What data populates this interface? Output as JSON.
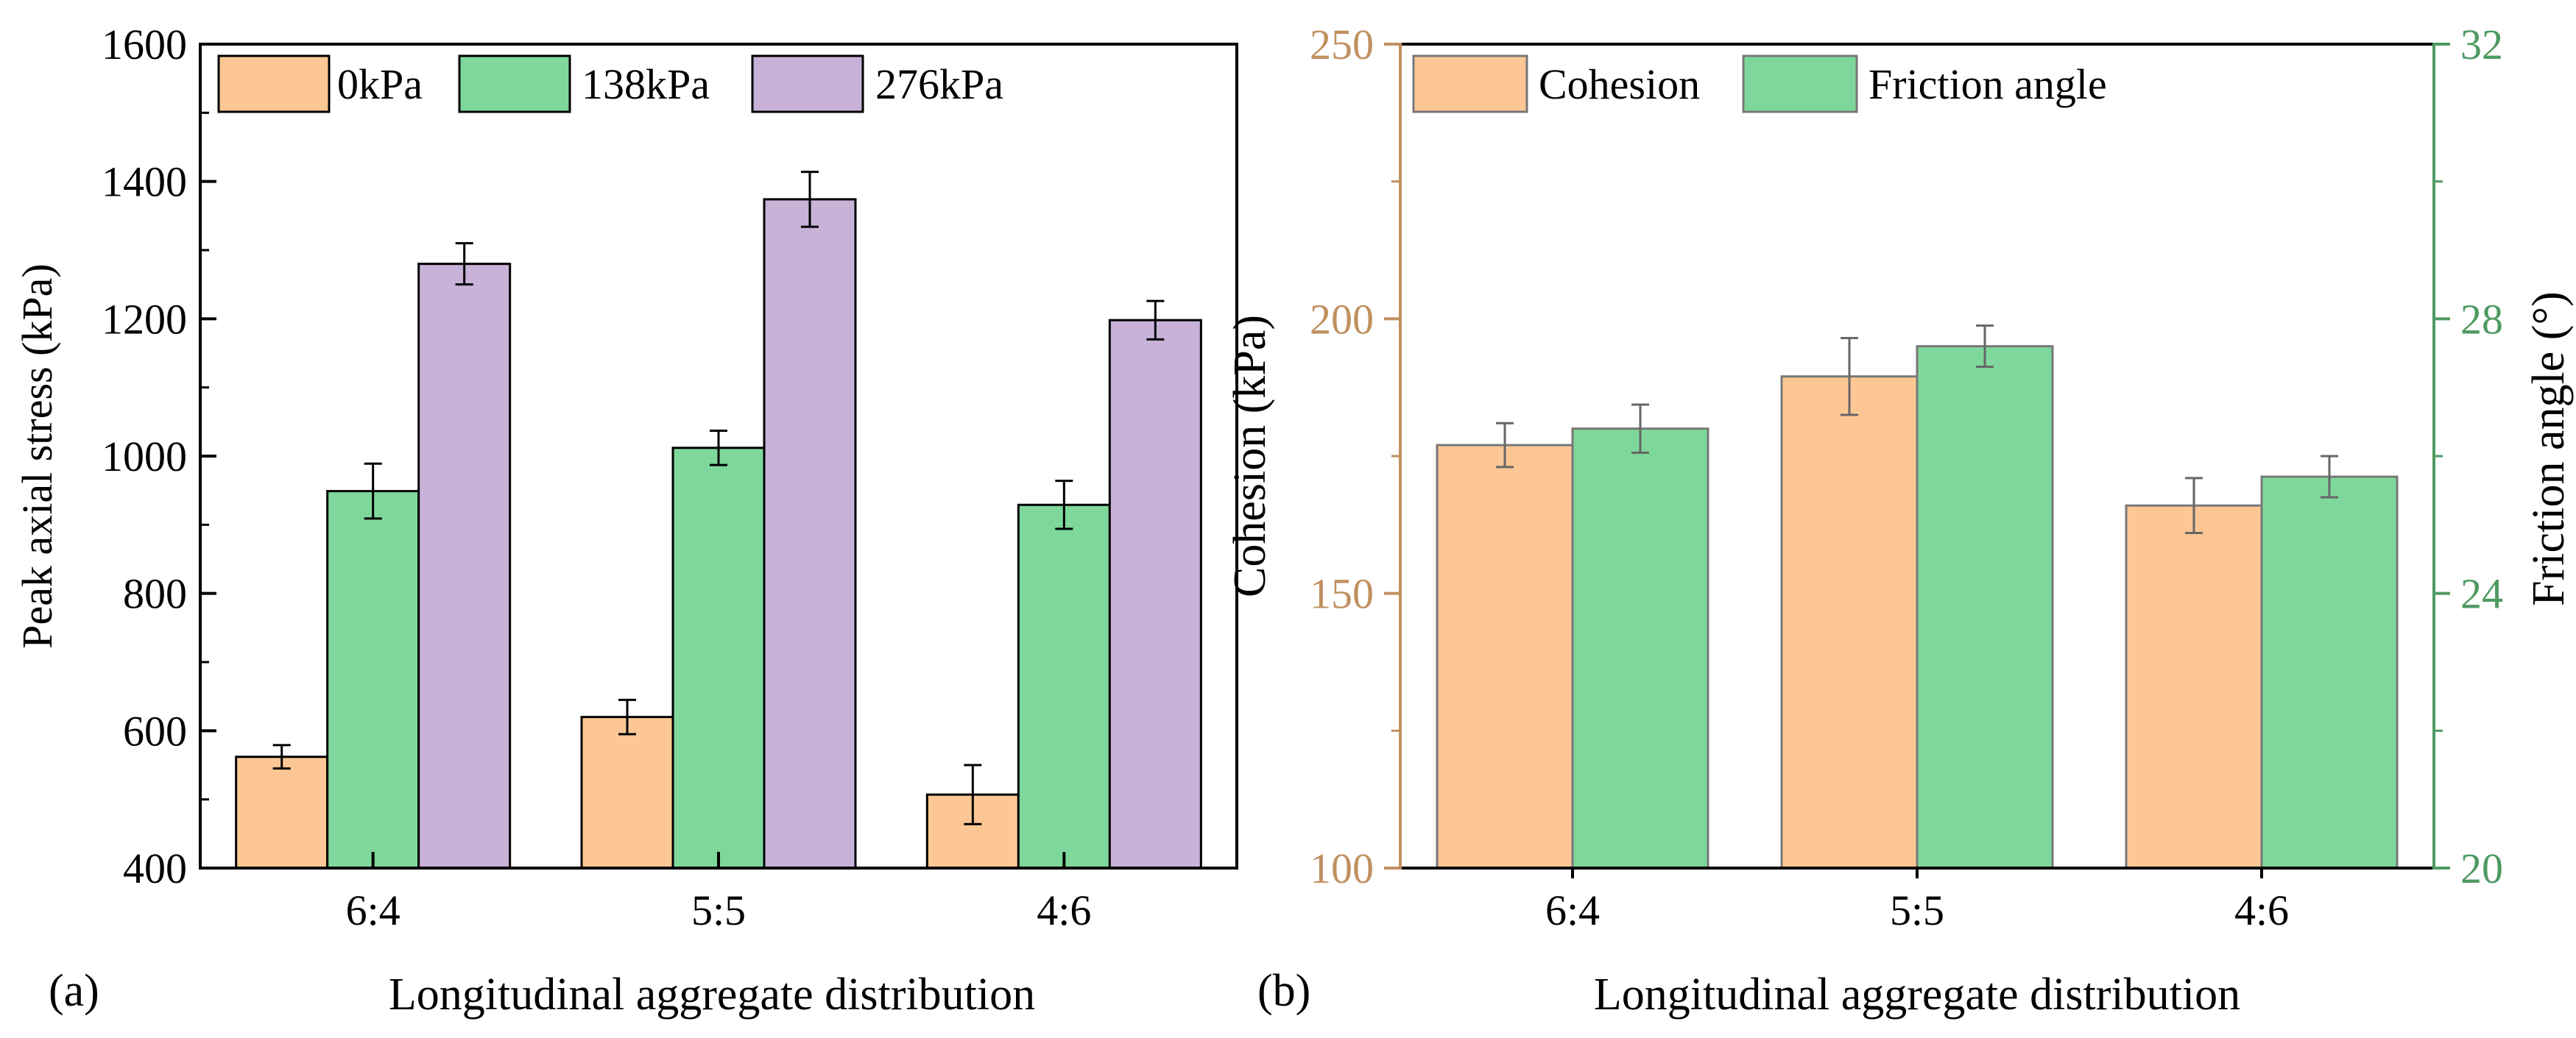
{
  "chart_data": [
    {
      "panel_label": "(a)",
      "type": "bar",
      "categories": [
        "6:4",
        "5:5",
        "4:6"
      ],
      "xlabel": "Longitudinal aggregate distribution",
      "ylabel": "Peak axial stress (kPa)",
      "ylim": [
        400,
        1600
      ],
      "yticks": [
        400,
        600,
        800,
        1000,
        1200,
        1400,
        1600
      ],
      "legend_position": "top-left",
      "series": [
        {
          "name": "0kPa",
          "color": "#FCC794",
          "values": [
            562,
            620,
            507
          ],
          "errors": [
            17,
            25,
            43
          ]
        },
        {
          "name": "138kPa",
          "color": "#7FD89B",
          "values": [
            949,
            1012,
            929
          ],
          "errors": [
            40,
            25,
            35
          ]
        },
        {
          "name": "276kPa",
          "color": "#C8B2D8",
          "values": [
            1280,
            1374,
            1198
          ],
          "errors": [
            30,
            40,
            28
          ]
        }
      ]
    },
    {
      "panel_label": "(b)",
      "type": "bar",
      "categories": [
        "6:4",
        "5:5",
        "4:6"
      ],
      "xlabel": "Longitudinal aggregate distribution",
      "ylabel_left": "Cohesion (kPa)",
      "ylabel_right": "Friction angle (°)",
      "ylim_left": [
        100,
        250
      ],
      "ylim_right": [
        20,
        32
      ],
      "yticks_left": [
        100,
        150,
        200,
        250
      ],
      "yticks_right": [
        20,
        24,
        28,
        32
      ],
      "left_axis_color": "#C09060",
      "right_axis_color": "#4E9A62",
      "legend_position": "top-left",
      "series": [
        {
          "name": "Cohesion",
          "axis": "left",
          "color": "#FCC794",
          "values": [
            177,
            189.5,
            166
          ],
          "errors": [
            4,
            7,
            5
          ]
        },
        {
          "name": "Friction angle",
          "axis": "right",
          "color": "#7FD89B",
          "values": [
            26.4,
            27.6,
            25.7
          ],
          "errors": [
            0.35,
            0.3,
            0.3
          ]
        }
      ]
    }
  ]
}
